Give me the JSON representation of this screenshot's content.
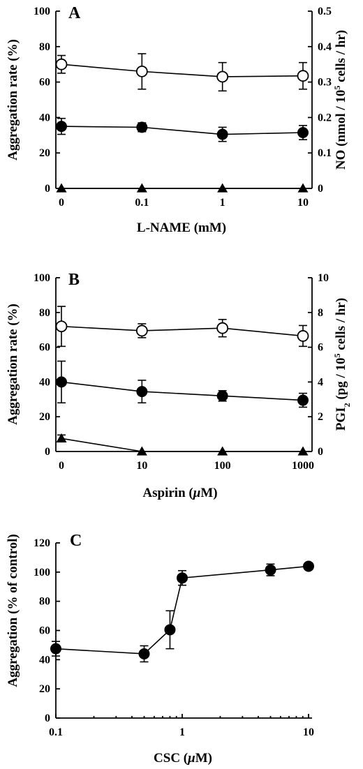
{
  "chart_data": [
    {
      "type": "line",
      "panel_label": "A",
      "xlabel": "L-NAME (mM)",
      "xscale": "log",
      "x_tick_labels": [
        "0",
        "0.1",
        "1",
        "10"
      ],
      "x_categories": [
        "0",
        "0.1",
        "1",
        "10"
      ],
      "ylabel_left": "Aggregation rate (%)",
      "ylim_left": [
        0,
        100
      ],
      "y_ticks_left": [
        "0",
        "20",
        "40",
        "60",
        "80",
        "100"
      ],
      "ylabel_right": "NO (nmol / 10⁵ cells / hr)",
      "ylabel_right_parts": [
        "NO (nmol / 10",
        "5",
        " cells / hr)"
      ],
      "ylim_right": [
        0,
        0.5
      ],
      "y_ticks_right": [
        "0",
        "0.1",
        "0.2",
        "0.3",
        "0.4",
        "0.5"
      ],
      "series": [
        {
          "marker": "open-circle",
          "axis": "left",
          "values": [
            70,
            66,
            63,
            63.5
          ],
          "errors": [
            5,
            10,
            8,
            7.5
          ]
        },
        {
          "marker": "filled-circle",
          "axis": "left",
          "values": [
            35,
            34.5,
            30.5,
            31.5
          ],
          "errors": [
            4.5,
            2.5,
            4,
            4
          ]
        },
        {
          "marker": "filled-triangle",
          "axis": "right",
          "values": [
            0,
            0,
            0,
            0
          ],
          "errors": [
            0,
            0,
            0,
            0
          ]
        }
      ]
    },
    {
      "type": "line",
      "panel_label": "B",
      "xlabel": "Aspirin (μM)",
      "xlabel_parts": [
        "Aspirin (",
        "μ",
        "M)"
      ],
      "xscale": "log",
      "x_tick_labels": [
        "0",
        "10",
        "100",
        "1000"
      ],
      "x_categories": [
        "0",
        "10",
        "100",
        "1000"
      ],
      "ylabel_left": "Aggregation rate (%)",
      "ylim_left": [
        0,
        100
      ],
      "y_ticks_left": [
        "0",
        "20",
        "40",
        "60",
        "80",
        "100"
      ],
      "ylabel_right": "PGI₂ (pg / 10⁵ cells / hr)",
      "ylabel_right_parts": [
        "PGI",
        "2",
        " (pg / 10",
        "5",
        " cells / hr)"
      ],
      "ylim_right": [
        0,
        10
      ],
      "y_ticks_right": [
        "0",
        "2",
        "4",
        "6",
        "8",
        "10"
      ],
      "series": [
        {
          "marker": "open-circle",
          "axis": "left",
          "values": [
            72,
            69.5,
            71,
            66.5
          ],
          "errors": [
            11.5,
            4,
            5,
            6
          ]
        },
        {
          "marker": "filled-circle",
          "axis": "left",
          "values": [
            40,
            34.5,
            32,
            29.5
          ],
          "errors": [
            12,
            6.5,
            3,
            4
          ]
        },
        {
          "marker": "filled-triangle",
          "axis": "right",
          "values": [
            0.75,
            0,
            0,
            0
          ],
          "errors": [
            0.2,
            0,
            0,
            0
          ]
        }
      ]
    },
    {
      "type": "line",
      "panel_label": "C",
      "xlabel": "CSC (μM)",
      "xlabel_parts": [
        "CSC (",
        "μ",
        "M)"
      ],
      "xscale": "log",
      "xlim": [
        0.1,
        10
      ],
      "x_tick_labels": [
        "0.1",
        "1",
        "10"
      ],
      "x_tick_values": [
        0.1,
        1,
        10
      ],
      "ylabel_left": "Aggregation (% of control)",
      "ylim_left": [
        0,
        120
      ],
      "y_ticks_left": [
        "0",
        "20",
        "40",
        "60",
        "80",
        "100",
        "120"
      ],
      "series": [
        {
          "marker": "filled-circle",
          "axis": "left",
          "x": [
            0.1,
            0.5,
            0.8,
            1,
            5,
            10
          ],
          "values": [
            47.5,
            44,
            60.5,
            96,
            101.5,
            104
          ],
          "errors": [
            5,
            5.5,
            13,
            5,
            4,
            2
          ]
        }
      ]
    }
  ]
}
